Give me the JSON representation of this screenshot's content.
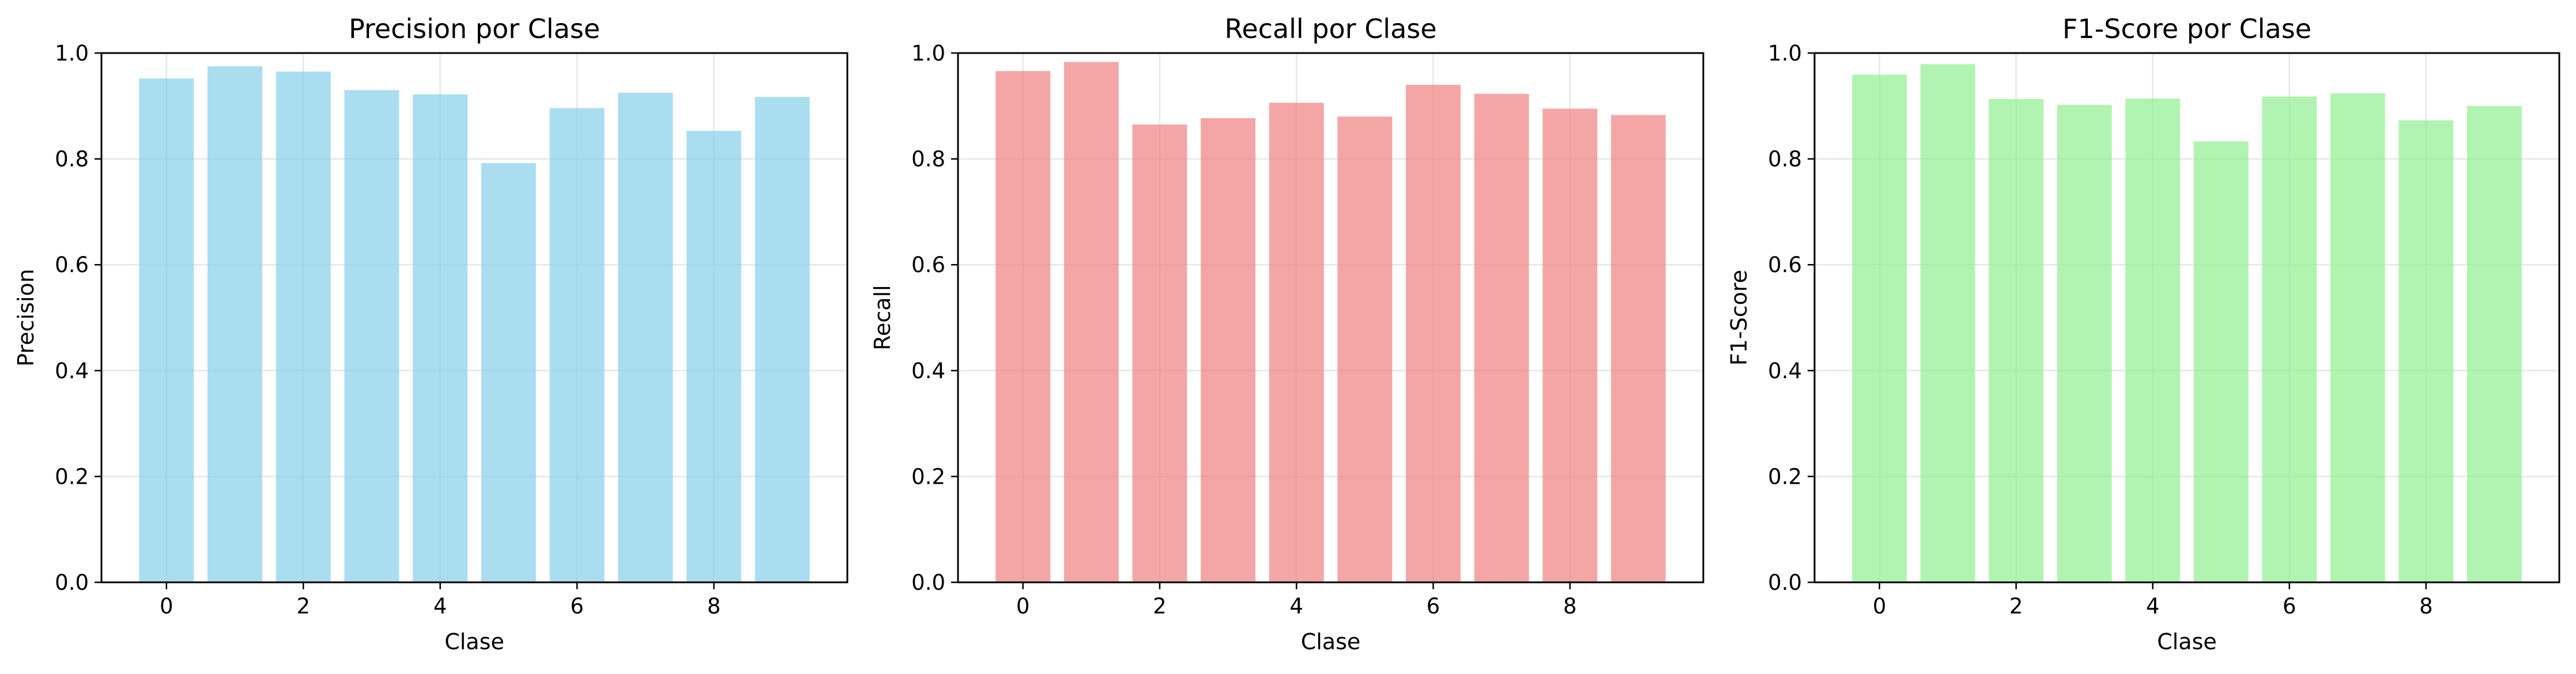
{
  "chart_data": [
    {
      "type": "bar",
      "title": "Precision por Clase",
      "xlabel": "Clase",
      "ylabel": "Precision",
      "categories": [
        0,
        1,
        2,
        3,
        4,
        5,
        6,
        7,
        8,
        9
      ],
      "values": [
        0.952,
        0.975,
        0.965,
        0.93,
        0.922,
        0.792,
        0.896,
        0.925,
        0.853,
        0.917
      ],
      "ylim": [
        0,
        1
      ],
      "yticks": [
        "0.0",
        "0.2",
        "0.4",
        "0.6",
        "0.8",
        "1.0"
      ],
      "xticks": [
        "0",
        "2",
        "4",
        "6",
        "8"
      ],
      "grid": true,
      "color": "#87CEEB"
    },
    {
      "type": "bar",
      "title": "Recall por Clase",
      "xlabel": "Clase",
      "ylabel": "Recall",
      "categories": [
        0,
        1,
        2,
        3,
        4,
        5,
        6,
        7,
        8,
        9
      ],
      "values": [
        0.966,
        0.983,
        0.865,
        0.877,
        0.906,
        0.88,
        0.94,
        0.923,
        0.895,
        0.883
      ],
      "ylim": [
        0,
        1
      ],
      "yticks": [
        "0.0",
        "0.2",
        "0.4",
        "0.6",
        "0.8",
        "1.0"
      ],
      "xticks": [
        "0",
        "2",
        "4",
        "6",
        "8"
      ],
      "grid": true,
      "color": "#F08080"
    },
    {
      "type": "bar",
      "title": "F1-Score por Clase",
      "xlabel": "Clase",
      "ylabel": "F1-Score",
      "categories": [
        0,
        1,
        2,
        3,
        4,
        5,
        6,
        7,
        8,
        9
      ],
      "values": [
        0.959,
        0.979,
        0.913,
        0.902,
        0.914,
        0.833,
        0.918,
        0.924,
        0.873,
        0.9
      ],
      "ylim": [
        0,
        1
      ],
      "yticks": [
        "0.0",
        "0.2",
        "0.4",
        "0.6",
        "0.8",
        "1.0"
      ],
      "xticks": [
        "0",
        "2",
        "4",
        "6",
        "8"
      ],
      "grid": true,
      "color": "#90EE90"
    }
  ]
}
